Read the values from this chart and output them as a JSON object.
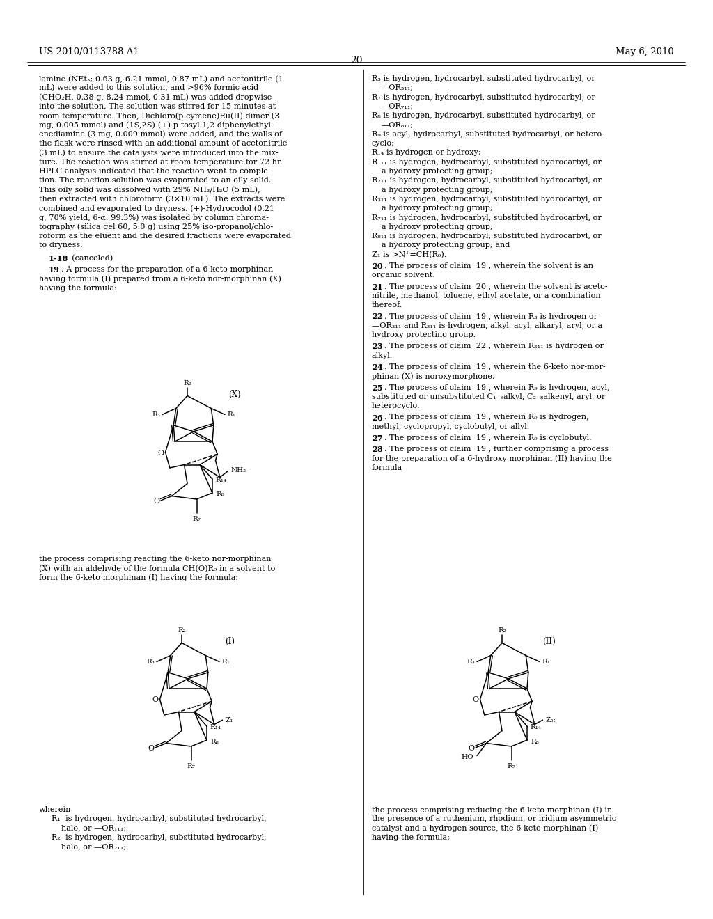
{
  "page_number": "20",
  "patent_number": "US 2010/0113788 A1",
  "date": "May 6, 2010",
  "background_color": "#ffffff"
}
